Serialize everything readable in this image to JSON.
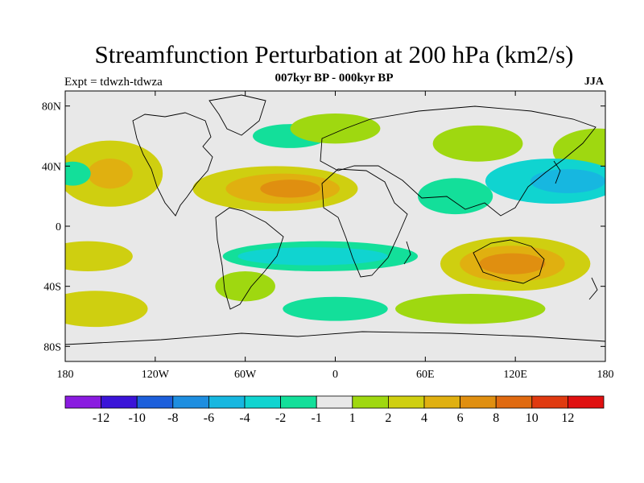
{
  "header": {
    "title": "Streamfunction Perturbation at 200 hPa (km2/s)",
    "subtitle": "007kyr BP - 000kyr BP",
    "left_label": "Expt = tdwzh-tdwza",
    "right_label": "JJA"
  },
  "map": {
    "lon_range": [
      -180,
      180
    ],
    "lat_range": [
      -90,
      90
    ],
    "x_ticks": [
      {
        "lon": -180,
        "label": "180"
      },
      {
        "lon": -120,
        "label": "120W"
      },
      {
        "lon": -60,
        "label": "60W"
      },
      {
        "lon": 0,
        "label": "0"
      },
      {
        "lon": 60,
        "label": "60E"
      },
      {
        "lon": 120,
        "label": "120E"
      },
      {
        "lon": 180,
        "label": "180"
      }
    ],
    "y_ticks": [
      {
        "lat": 80,
        "label": "80N"
      },
      {
        "lat": 40,
        "label": "40N"
      },
      {
        "lat": 0,
        "label": "0"
      },
      {
        "lat": -40,
        "label": "40S"
      },
      {
        "lat": -80,
        "label": "80S"
      }
    ]
  },
  "colorbar": {
    "colors": [
      "#8a1be0",
      "#3b14d8",
      "#1d5fdb",
      "#1e8ee0",
      "#17b7e0",
      "#10d4d0",
      "#13df9a",
      "#e8e8e8",
      "#9fd810",
      "#cfcf10",
      "#e0b010",
      "#e08f10",
      "#e06a10",
      "#e03a10",
      "#e01010"
    ],
    "labels": [
      "-12",
      "-10",
      "-8",
      "-6",
      "-4",
      "-2",
      "-1",
      "1",
      "2",
      "4",
      "6",
      "8",
      "10",
      "12"
    ]
  },
  "field_blobs": [
    {
      "lon": -40,
      "lat": 25,
      "rlon": 55,
      "rlat": 15,
      "level": 2
    },
    {
      "lon": -35,
      "lat": 25,
      "rlon": 38,
      "rlat": 10,
      "level": 3
    },
    {
      "lon": -30,
      "lat": 25,
      "rlon": 20,
      "rlat": 6,
      "level": 4
    },
    {
      "lon": -150,
      "lat": 35,
      "rlon": 35,
      "rlat": 22,
      "level": 2
    },
    {
      "lon": -150,
      "lat": 35,
      "rlon": 15,
      "rlat": 10,
      "level": 3
    },
    {
      "lon": 120,
      "lat": -25,
      "rlon": 50,
      "rlat": 18,
      "level": 2
    },
    {
      "lon": 118,
      "lat": -25,
      "rlon": 35,
      "rlat": 12,
      "level": 3
    },
    {
      "lon": 118,
      "lat": -25,
      "rlon": 22,
      "rlat": 7,
      "level": 4
    },
    {
      "lon": -165,
      "lat": -20,
      "rlon": 30,
      "rlat": 10,
      "level": 2
    },
    {
      "lon": -160,
      "lat": -55,
      "rlon": 35,
      "rlat": 12,
      "level": 2
    },
    {
      "lon": 175,
      "lat": 50,
      "rlon": 30,
      "rlat": 15,
      "level": 1
    },
    {
      "lon": -60,
      "lat": -40,
      "rlon": 20,
      "rlat": 10,
      "level": 1
    },
    {
      "lon": 95,
      "lat": 55,
      "rlon": 30,
      "rlat": 12,
      "level": 1
    },
    {
      "lon": 90,
      "lat": -55,
      "rlon": 50,
      "rlat": 10,
      "level": 1
    },
    {
      "lon": -30,
      "lat": 60,
      "rlon": 25,
      "rlat": 8,
      "level": -1
    },
    {
      "lon": 0,
      "lat": 65,
      "rlon": 30,
      "rlat": 10,
      "level": 1
    },
    {
      "lon": -10,
      "lat": -20,
      "rlon": 65,
      "rlat": 10,
      "level": -1
    },
    {
      "lon": -15,
      "lat": -20,
      "rlon": 50,
      "rlat": 6,
      "level": -2
    },
    {
      "lon": -175,
      "lat": 35,
      "rlon": 12,
      "rlat": 8,
      "level": -1
    },
    {
      "lon": 145,
      "lat": 30,
      "rlon": 45,
      "rlat": 15,
      "level": -2
    },
    {
      "lon": 155,
      "lat": 30,
      "rlon": 25,
      "rlat": 8,
      "level": -3
    },
    {
      "lon": 80,
      "lat": 20,
      "rlon": 25,
      "rlat": 12,
      "level": -1
    },
    {
      "lon": 0,
      "lat": -55,
      "rlon": 35,
      "rlat": 8,
      "level": -1
    }
  ]
}
